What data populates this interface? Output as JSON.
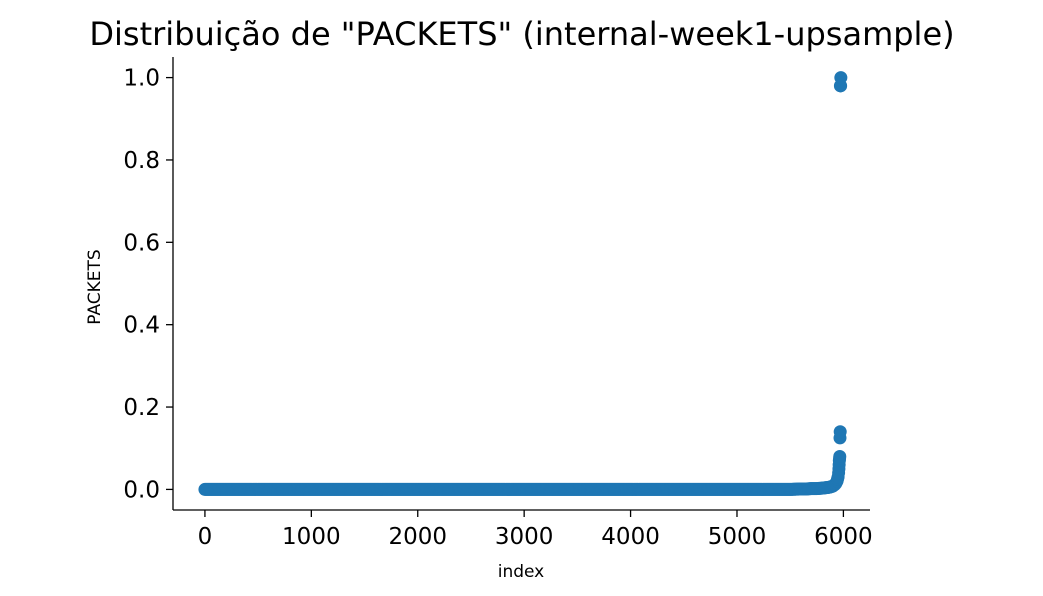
{
  "chart_data": {
    "type": "scatter",
    "title": "Distribuição de \"PACKETS\" (internal-week1-upsample)",
    "xlabel": "index",
    "ylabel": "PACKETS",
    "xlim": [
      -300,
      6250
    ],
    "ylim": [
      -0.05,
      1.05
    ],
    "xticks": [
      0,
      1000,
      2000,
      3000,
      4000,
      5000,
      6000
    ],
    "yticks": [
      0.0,
      0.2,
      0.4,
      0.6,
      0.8,
      1.0
    ],
    "ytick_labels": [
      "0.0",
      "0.2",
      "0.4",
      "0.6",
      "0.8",
      "1.0"
    ],
    "grid": false,
    "marker_color": "#1f77b4",
    "series": [
      {
        "x": [
          0,
          100,
          200,
          300,
          400,
          500,
          600,
          700,
          800,
          900,
          1000,
          1100,
          1200,
          1300,
          1400,
          1500,
          1600,
          1700,
          1800,
          1900,
          2000,
          2100,
          2200,
          2300,
          2400,
          2500,
          2600,
          2700,
          2800,
          2900,
          3000,
          3100,
          3200,
          3300,
          3400,
          3500,
          3600,
          3700,
          3800,
          3900,
          4000,
          4100,
          4200,
          4300,
          4400,
          4500,
          4600,
          4700,
          4800,
          4900,
          5000,
          5100,
          5200,
          5300,
          5400,
          5500,
          5600,
          5650,
          5700,
          5750,
          5800,
          5830,
          5860,
          5880,
          5900,
          5910,
          5920,
          5930,
          5940,
          5945,
          5950,
          5955,
          5958,
          5960,
          5962,
          5964,
          5966,
          5968,
          5970,
          5972,
          5974,
          5976
        ],
        "y": [
          0.0,
          0.0,
          0.0,
          0.0,
          0.0,
          0.0,
          0.0,
          0.0,
          0.0,
          0.0,
          0.0,
          0.0,
          0.0,
          0.0,
          0.0,
          0.0,
          0.0,
          0.0,
          0.0,
          0.0,
          0.0,
          0.0,
          0.0,
          0.0,
          0.0,
          0.0,
          0.0,
          0.0,
          0.0,
          0.0,
          0.0,
          0.0,
          0.0,
          0.0,
          0.0,
          0.0,
          0.0,
          0.0,
          0.0,
          0.0,
          0.0,
          0.0,
          0.0,
          0.0,
          0.0,
          0.0,
          0.0,
          0.0,
          0.0,
          0.0,
          0.0,
          0.0,
          0.0,
          0.0,
          0.0,
          0.0,
          0.001,
          0.001,
          0.002,
          0.002,
          0.003,
          0.004,
          0.005,
          0.006,
          0.008,
          0.01,
          0.012,
          0.015,
          0.02,
          0.025,
          0.03,
          0.04,
          0.05,
          0.06,
          0.07,
          0.075,
          0.08,
          0.125,
          0.14,
          0.98,
          0.98,
          1.0
        ]
      }
    ]
  }
}
